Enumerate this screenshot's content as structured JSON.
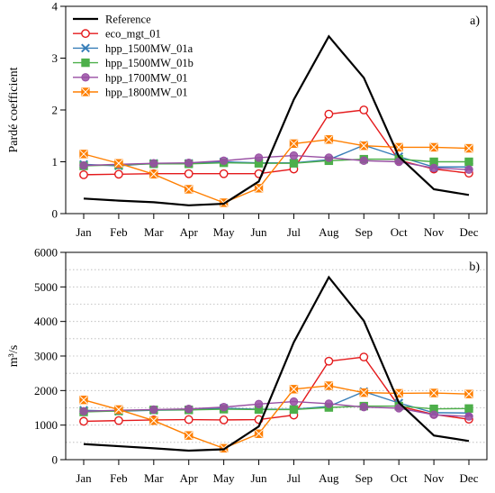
{
  "chart_data": [
    {
      "type": "line",
      "panel_label": "a)",
      "ylabel": "Pardé coefficient",
      "xlabel": "",
      "categories": [
        "Jan",
        "Feb",
        "Mar",
        "Apr",
        "May",
        "Jun",
        "Jul",
        "Aug",
        "Sep",
        "Oct",
        "Nov",
        "Dec"
      ],
      "ylim": [
        0,
        4
      ],
      "yticks": [
        0,
        1,
        2,
        3,
        4
      ],
      "reference_line": 0,
      "grid": false,
      "legend_position": "top-left",
      "series": [
        {
          "name": "Reference",
          "color": "#000000",
          "marker": "none",
          "values": [
            0.29,
            0.25,
            0.22,
            0.16,
            0.19,
            0.62,
            2.2,
            3.42,
            2.62,
            1.1,
            0.47,
            0.36
          ]
        },
        {
          "name": "eco_mgt_01",
          "color": "#e41a1c",
          "marker": "circle-open",
          "values": [
            0.75,
            0.76,
            0.77,
            0.77,
            0.77,
            0.77,
            0.86,
            1.92,
            2.0,
            1.03,
            0.86,
            0.78
          ]
        },
        {
          "name": "hpp_1500MW_01a",
          "color": "#377eb8",
          "marker": "x",
          "values": [
            0.95,
            0.92,
            0.97,
            0.97,
            1.0,
            0.98,
            0.98,
            1.04,
            1.32,
            1.1,
            0.9,
            0.9
          ]
        },
        {
          "name": "hpp_1500MW_01b",
          "color": "#4daf4a",
          "marker": "square",
          "values": [
            0.92,
            0.94,
            0.96,
            0.96,
            0.98,
            0.97,
            0.97,
            1.02,
            1.05,
            1.05,
            1.0,
            1.0
          ]
        },
        {
          "name": "hpp_1700MW_01",
          "color": "#984ea3",
          "marker": "circle",
          "values": [
            0.93,
            0.95,
            0.97,
            0.98,
            1.02,
            1.08,
            1.12,
            1.08,
            1.02,
            1.0,
            0.88,
            0.85
          ]
        },
        {
          "name": "hpp_1800MW_01",
          "color": "#ff7f00",
          "marker": "square-x",
          "values": [
            1.15,
            0.97,
            0.76,
            0.47,
            0.21,
            0.49,
            1.35,
            1.43,
            1.31,
            1.28,
            1.28,
            1.26
          ]
        }
      ]
    },
    {
      "type": "line",
      "panel_label": "b)",
      "ylabel": "m³/s",
      "xlabel": "",
      "categories": [
        "Jan",
        "Feb",
        "Mar",
        "Apr",
        "May",
        "Jun",
        "Jul",
        "Aug",
        "Sep",
        "Oct",
        "Nov",
        "Dec"
      ],
      "ylim": [
        0,
        6000
      ],
      "yticks": [
        0,
        1000,
        2000,
        3000,
        4000,
        5000,
        6000
      ],
      "grid_dotted_every": 500,
      "legend_position": "none",
      "series": [
        {
          "name": "Reference",
          "color": "#000000",
          "marker": "none",
          "values": [
            450,
            390,
            330,
            260,
            300,
            960,
            3400,
            5280,
            4020,
            1650,
            700,
            540
          ]
        },
        {
          "name": "eco_mgt_01",
          "color": "#e41a1c",
          "marker": "circle-open",
          "values": [
            1110,
            1130,
            1150,
            1160,
            1150,
            1160,
            1290,
            2850,
            2970,
            1550,
            1310,
            1170
          ]
        },
        {
          "name": "hpp_1500MW_01a",
          "color": "#377eb8",
          "marker": "x",
          "values": [
            1430,
            1400,
            1430,
            1440,
            1490,
            1460,
            1460,
            1540,
            1970,
            1640,
            1360,
            1350
          ]
        },
        {
          "name": "hpp_1500MW_01b",
          "color": "#4daf4a",
          "marker": "square",
          "values": [
            1380,
            1410,
            1440,
            1440,
            1460,
            1450,
            1450,
            1510,
            1550,
            1550,
            1470,
            1480
          ]
        },
        {
          "name": "hpp_1700MW_01",
          "color": "#984ea3",
          "marker": "circle",
          "values": [
            1400,
            1430,
            1450,
            1470,
            1520,
            1610,
            1680,
            1620,
            1520,
            1490,
            1300,
            1250
          ]
        },
        {
          "name": "hpp_1800MW_01",
          "color": "#ff7f00",
          "marker": "square-x",
          "values": [
            1730,
            1450,
            1130,
            700,
            330,
            750,
            2040,
            2140,
            1940,
            1920,
            1930,
            1900
          ]
        }
      ]
    }
  ]
}
